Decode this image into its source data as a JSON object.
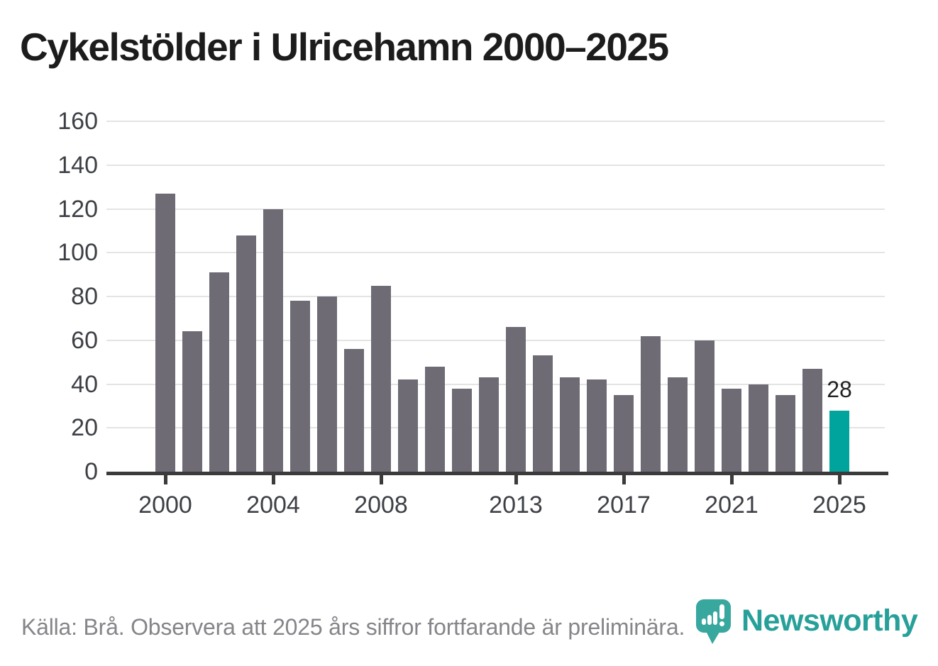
{
  "title": "Cykelstölder i Ulricehamn 2000–2025",
  "chart_data": {
    "type": "bar",
    "title": "Cykelstölder i Ulricehamn 2000–2025",
    "categories": [
      2000,
      2001,
      2002,
      2003,
      2004,
      2005,
      2006,
      2007,
      2008,
      2009,
      2010,
      2011,
      2012,
      2013,
      2014,
      2015,
      2016,
      2017,
      2018,
      2019,
      2020,
      2021,
      2022,
      2023,
      2024,
      2025
    ],
    "values": [
      127,
      64,
      91,
      108,
      120,
      78,
      80,
      56,
      85,
      42,
      48,
      38,
      43,
      66,
      53,
      43,
      42,
      35,
      62,
      43,
      60,
      38,
      40,
      35,
      47,
      28
    ],
    "highlight_index": 25,
    "annotation": {
      "index": 25,
      "label": "28"
    },
    "x_tick_labels": [
      "2000",
      "2004",
      "2008",
      "2013",
      "2017",
      "2021",
      "2025"
    ],
    "y_ticks": [
      0,
      20,
      40,
      60,
      80,
      100,
      120,
      140,
      160
    ],
    "ylim": [
      0,
      160
    ],
    "xlabel": "",
    "ylabel": "",
    "grid": true,
    "legend": "none"
  },
  "colors": {
    "bar": "#6e6b74",
    "bar_highlight": "#00a49c",
    "grid": "#e4e4e4",
    "axis": "#3b3b3b",
    "tick_label": "#3d4045",
    "title": "#1c1c1c",
    "footer": "#85858a",
    "logo_teal": "#27a099",
    "logo_badge_teal": "#38a79e"
  },
  "footer": {
    "source_text": "Källa: Brå. Observera att 2025 års siffror fortfarande är preliminära."
  },
  "logo": {
    "wordmark": "Newsworthy"
  }
}
